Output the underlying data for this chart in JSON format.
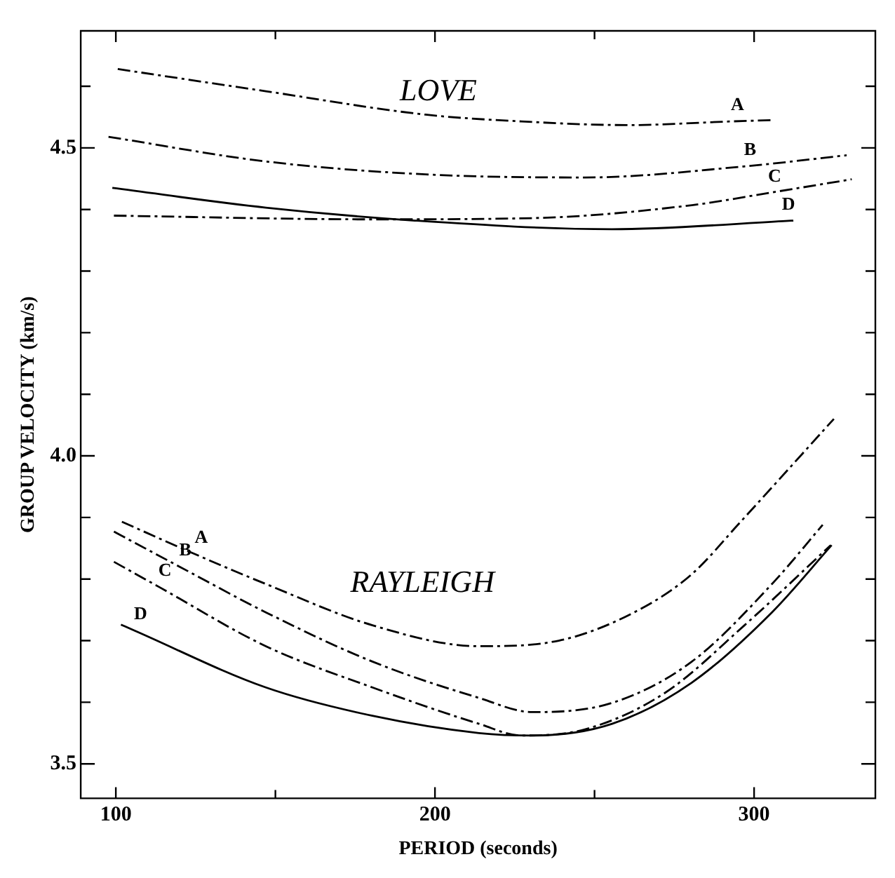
{
  "chart_data": {
    "type": "line",
    "xlabel": "PERIOD (seconds)",
    "ylabel": "GROUP VELOCITY (km/s)",
    "xlim": [
      89,
      338
    ],
    "xticks": [
      100,
      {
        "value": 150,
        "label": null
      },
      200,
      {
        "value": 250,
        "label": null
      },
      300
    ],
    "ylim": [
      3.444,
      4.69
    ],
    "yticks": [
      3.5,
      {
        "value": 3.6,
        "label": null
      },
      {
        "value": 3.7,
        "label": null
      },
      {
        "value": 3.8,
        "label": null
      },
      {
        "value": 3.9,
        "label": null
      },
      {
        "value": 4,
        "label": "4.0"
      },
      {
        "value": 4.1,
        "label": null
      },
      {
        "value": 4.2,
        "label": null
      },
      {
        "value": 4.3,
        "label": null
      },
      {
        "value": 4.4,
        "label": null
      },
      4.5,
      {
        "value": 4.6,
        "label": null
      }
    ],
    "series": [
      {
        "color": "#000000",
        "line_style": "dashed",
        "x": [
          100.6,
          147,
          197,
          227,
          260.5,
          293,
          305.6
        ],
        "values": [
          4.628,
          4.592,
          4.554,
          4.543,
          4.537,
          4.543,
          4.545
        ]
      },
      {
        "color": "#000000",
        "line_style": "dashed",
        "x": [
          97.7,
          147,
          197,
          247,
          297,
          329
        ],
        "values": [
          4.518,
          4.478,
          4.457,
          4.452,
          4.47,
          4.488
        ]
      },
      {
        "color": "#000000",
        "line_style": "dashed",
        "x": [
          99.4,
          180,
          230.5,
          280.5,
          304.7,
          330.6
        ],
        "values": [
          4.39,
          4.384,
          4.386,
          4.407,
          4.427,
          4.449
        ]
      },
      {
        "color": "#000000",
        "line_style": "solid",
        "x": [
          98.9,
          147,
          193.7,
          255.5,
          309,
          312.3
        ],
        "values": [
          4.435,
          4.403,
          4.382,
          4.368,
          4.381,
          4.382
        ]
      },
      {
        "color": "#000000",
        "line_style": "dashed",
        "x": [
          101.9,
          125,
          147,
          180.4,
          213.8,
          238.8,
          263.9,
          280.5,
          295.6,
          325
        ],
        "values": [
          3.893,
          3.84,
          3.792,
          3.725,
          3.691,
          3.7,
          3.75,
          3.808,
          3.892,
          4.06
        ]
      },
      {
        "color": "#000000",
        "line_style": "dashed",
        "x": [
          99.4,
          120,
          147,
          180.4,
          213.8,
          230.5,
          255.5,
          280.5,
          305.6,
          321.5
        ],
        "values": [
          3.877,
          3.82,
          3.746,
          3.666,
          3.607,
          3.584,
          3.599,
          3.666,
          3.792,
          3.888
        ]
      },
      {
        "color": "#000000",
        "line_style": "dashed",
        "x": [
          99.4,
          113.6,
          147,
          180.4,
          213.8,
          227,
          247,
          272,
          297,
          324
        ],
        "values": [
          3.828,
          3.787,
          3.691,
          3.624,
          3.565,
          3.546,
          3.556,
          3.615,
          3.725,
          3.855
        ]
      },
      {
        "color": "#000000",
        "line_style": "solid",
        "x": [
          101.6,
          106,
          147,
          180.4,
          213.8,
          230.5,
          255.5,
          280.5,
          305.6,
          324.3
        ],
        "values": [
          3.726,
          3.716,
          3.624,
          3.578,
          3.55,
          3.546,
          3.565,
          3.632,
          3.746,
          3.855
        ]
      }
    ],
    "annotations": [
      "LOVE",
      "RAYLEIGH",
      {
        "text": "A",
        "x": 293,
        "y": 4.543
      },
      {
        "text": "B",
        "x": 297,
        "y": 4.47
      },
      {
        "text": "C",
        "x": 304.7,
        "y": 4.427
      },
      {
        "text": "D",
        "x": 309,
        "y": 4.381
      },
      {
        "text": "A",
        "x": 125,
        "y": 3.84
      },
      {
        "text": "B",
        "x": 120,
        "y": 3.82
      },
      {
        "text": "C",
        "x": 113.6,
        "y": 3.787
      },
      {
        "text": "D",
        "x": 106,
        "y": 3.716
      }
    ]
  }
}
